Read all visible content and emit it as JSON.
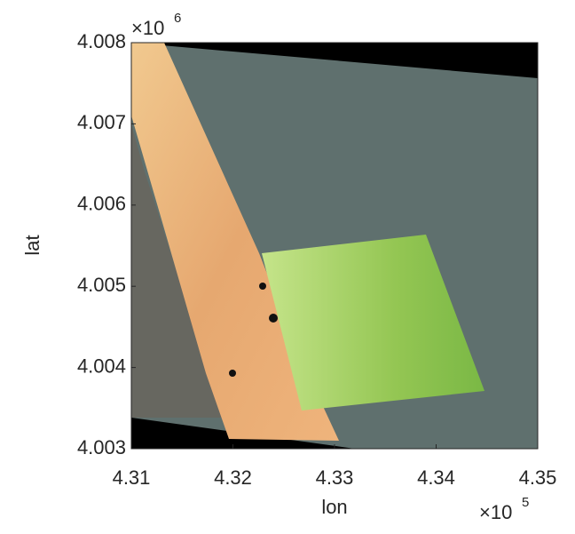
{
  "chart_data": {
    "type": "image",
    "x_label": "lon",
    "y_label": "lat",
    "x_multiplier": "×10",
    "x_exponent": "5",
    "y_multiplier": "×10",
    "y_exponent": "6",
    "xlim": [
      4.31,
      4.35
    ],
    "xticks": [
      4.31,
      4.32,
      4.33,
      4.34,
      4.35
    ],
    "ylim": [
      4.003,
      4.008
    ],
    "yticks": [
      4.003,
      4.004,
      4.005,
      4.006,
      4.007,
      4.008
    ]
  }
}
